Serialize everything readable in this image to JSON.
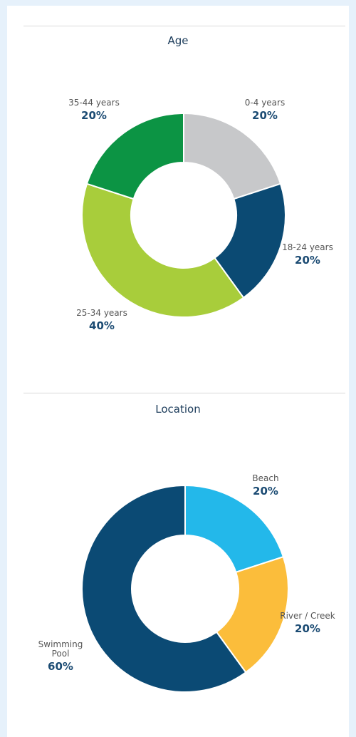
{
  "chart_data": [
    {
      "type": "donut",
      "title": "Age",
      "categories": [
        "0-4 years",
        "18-24 years",
        "25-34 years",
        "35-44 years"
      ],
      "values": [
        20,
        20,
        40,
        20
      ],
      "value_labels": [
        "20%",
        "20%",
        "40%",
        "20%"
      ],
      "colors": [
        "#c7c8ca",
        "#0b4a73",
        "#a8cd3b",
        "#0c9444"
      ]
    },
    {
      "type": "donut",
      "title": "Location",
      "categories": [
        "Beach",
        "River / Creek",
        "Swimming Pool"
      ],
      "values": [
        20,
        20,
        60
      ],
      "value_labels": [
        "20%",
        "20%",
        "60%"
      ],
      "colors": [
        "#23b8ea",
        "#fbbd3b",
        "#0b4a74"
      ]
    }
  ]
}
